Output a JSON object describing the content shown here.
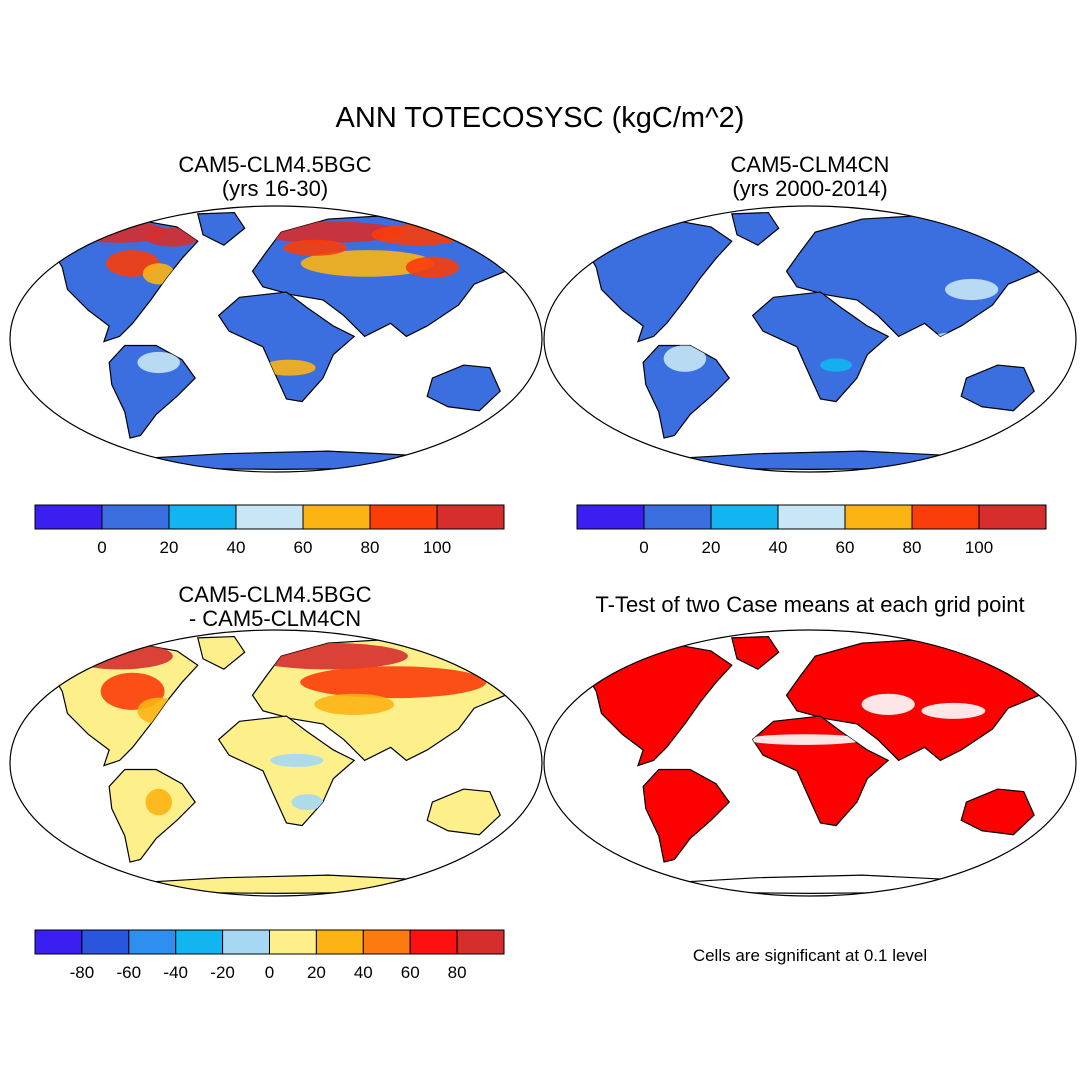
{
  "main_title": "ANN TOTECOSYSC (kgC/m^2)",
  "panels": {
    "top_left": {
      "title_line1": "CAM5-CLM4.5BGC",
      "title_line2": "(yrs 16-30)"
    },
    "top_right": {
      "title_line1": "CAM5-CLM4CN",
      "title_line2": "(yrs 2000-2014)"
    },
    "bottom_left": {
      "title_line1": "CAM5-CLM4.5BGC",
      "title_line2": "- CAM5-CLM4CN"
    },
    "bottom_right": {
      "title_line1": "T-Test of two Case means at each grid point"
    }
  },
  "significance_note": "Cells are significant at 0.1 level",
  "colorbars": {
    "case": {
      "colors": [
        "#3a1ff0",
        "#3b6fe0",
        "#12b5f0",
        "#c8e6f5",
        "#fcb414",
        "#fb3d0a",
        "#d62d2d"
      ],
      "labels": [
        "0",
        "20",
        "40",
        "60",
        "80",
        "100"
      ]
    },
    "diff": {
      "colors": [
        "#3a1ff0",
        "#2a55dd",
        "#2e8ff0",
        "#12b5f0",
        "#a6d8f3",
        "#fdf08a",
        "#fcb414",
        "#fd7a10",
        "#fd1010",
        "#d62d2d"
      ],
      "labels": [
        "-80",
        "-60",
        "-40",
        "-20",
        "0",
        "20",
        "40",
        "60",
        "80"
      ]
    }
  },
  "map_colors": {
    "top_left": {
      "base": "#3b6fe0",
      "highs": [
        "#d62d2d",
        "#fb3d0a",
        "#fcb414",
        "#c8e6f5"
      ]
    },
    "top_right": {
      "base": "#3b6fe0",
      "highs": [
        "#c8e6f5",
        "#12b5f0"
      ]
    },
    "bottom_left": {
      "base": "#fdf08a",
      "highs": [
        "#d62d2d",
        "#fb3d0a",
        "#fcb414",
        "#a6d8f3"
      ]
    },
    "bottom_right": {
      "base": "#fd0000",
      "highs": [
        "#ffffff"
      ]
    }
  }
}
